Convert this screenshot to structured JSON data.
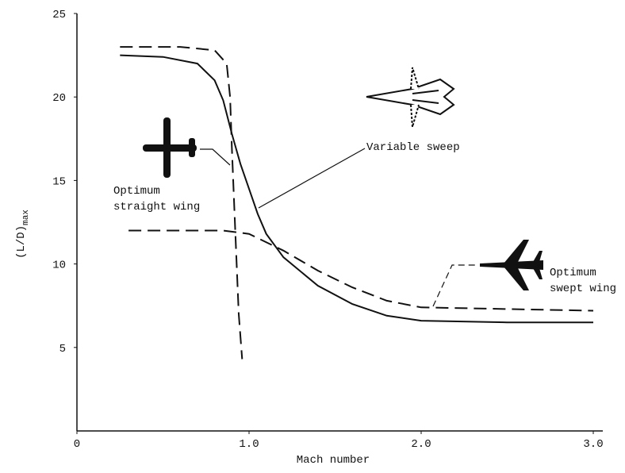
{
  "chart_data": {
    "type": "line",
    "xlabel": "Mach number",
    "ylabel": "(L/D)",
    "ylabel_subscript": "max",
    "xlim": [
      0,
      3
    ],
    "xticks": [
      0,
      {
        "value": 1,
        "label": "1.0"
      },
      {
        "value": 2,
        "label": "2.0"
      },
      {
        "value": 3,
        "label": "3.0"
      }
    ],
    "ylim": [
      0,
      25
    ],
    "yticks": [
      5,
      10,
      15,
      20,
      25
    ],
    "series": [
      {
        "color": "#111111",
        "dash": false,
        "x": [
          0.25,
          0.5,
          0.7,
          0.8,
          0.85,
          0.9,
          0.95,
          1.0,
          1.05,
          1.1,
          1.2,
          1.4,
          1.6,
          1.8,
          2.0,
          2.5,
          3.0
        ],
        "values": [
          22.5,
          22.4,
          22.0,
          21.0,
          19.8,
          17.8,
          16.0,
          14.5,
          13.0,
          11.8,
          10.4,
          8.7,
          7.6,
          6.9,
          6.6,
          6.5,
          6.5
        ]
      },
      {
        "color": "#111111",
        "dash": true,
        "x": [
          0.25,
          0.6,
          0.8,
          0.87,
          0.89,
          0.9,
          0.92,
          0.94,
          0.96
        ],
        "values": [
          23.0,
          23.0,
          22.8,
          22.0,
          20.0,
          17.0,
          12.0,
          7.0,
          4.3
        ]
      },
      {
        "color": "#111111",
        "dash": true,
        "x": [
          0.3,
          0.85,
          1.0,
          1.2,
          1.4,
          1.6,
          1.8,
          2.0,
          2.5,
          3.0
        ],
        "values": [
          12.0,
          12.0,
          11.8,
          10.8,
          9.6,
          8.6,
          7.8,
          7.4,
          7.3,
          7.2
        ]
      }
    ],
    "annotations": [
      {
        "lines": [
          "Variable sweep"
        ]
      },
      {
        "lines": [
          "Optimum",
          "straight wing"
        ]
      },
      {
        "lines": [
          "Optimum",
          "swept wing"
        ]
      }
    ]
  }
}
